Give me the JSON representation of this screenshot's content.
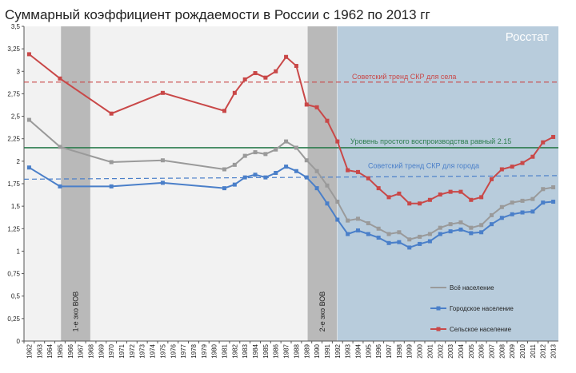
{
  "chart_data": {
    "type": "line",
    "title": "Суммарный коэффициент рождаемости в России с 1962 по 2013 гг",
    "watermark": "Росстат",
    "x_categories": [
      "1962",
      "1963",
      "1964",
      "1965",
      "1966",
      "1967",
      "1968",
      "1969",
      "1970",
      "1971",
      "1972",
      "1973",
      "1974",
      "1975",
      "1976",
      "1977",
      "1978",
      "1979",
      "1980",
      "1981",
      "1982",
      "1983",
      "1984",
      "1985",
      "1986",
      "1987",
      "1988",
      "1989",
      "1990",
      "1991",
      "1992",
      "1993",
      "1994",
      "1995",
      "1996",
      "1997",
      "1998",
      "1999",
      "2000",
      "2001",
      "2002",
      "2003",
      "2004",
      "2005",
      "2006",
      "2007",
      "2008",
      "2009",
      "2010",
      "2011",
      "2012",
      "2013"
    ],
    "y_ticks": [
      "0",
      "0,25",
      "0,5",
      "0,75",
      "1",
      "1,25",
      "1,5",
      "1,75",
      "2",
      "2,25",
      "2,5",
      "2,75",
      "3",
      "3,25",
      "3,5"
    ],
    "ylim": [
      0,
      3.5
    ],
    "grid": false,
    "legend_position": "bottom-right",
    "series": [
      {
        "name": "Всё население",
        "color": "#9a9a9a",
        "x": [
          1962,
          1965,
          1970,
          1975,
          1981,
          1982,
          1983,
          1984,
          1985,
          1986,
          1987,
          1988,
          1989,
          1990,
          1991,
          1992,
          1993,
          1994,
          1995,
          1996,
          1997,
          1998,
          1999,
          2000,
          2001,
          2002,
          2003,
          2004,
          2005,
          2006,
          2007,
          2008,
          2009,
          2010,
          2011,
          2012,
          2013
        ],
        "y": [
          2.46,
          2.16,
          1.99,
          2.01,
          1.91,
          1.96,
          2.06,
          2.1,
          2.08,
          2.13,
          2.22,
          2.15,
          2.01,
          1.89,
          1.73,
          1.55,
          1.34,
          1.36,
          1.31,
          1.25,
          1.19,
          1.21,
          1.13,
          1.16,
          1.19,
          1.26,
          1.3,
          1.32,
          1.26,
          1.29,
          1.4,
          1.49,
          1.54,
          1.56,
          1.58,
          1.69,
          1.71
        ]
      },
      {
        "name": "Городское население",
        "color": "#4a7fc9",
        "x": [
          1962,
          1965,
          1970,
          1975,
          1981,
          1982,
          1983,
          1984,
          1985,
          1986,
          1987,
          1988,
          1989,
          1990,
          1991,
          1992,
          1993,
          1994,
          1995,
          1996,
          1997,
          1998,
          1999,
          2000,
          2001,
          2002,
          2003,
          2004,
          2005,
          2006,
          2007,
          2008,
          2009,
          2010,
          2011,
          2012,
          2013
        ],
        "y": [
          1.93,
          1.72,
          1.72,
          1.76,
          1.7,
          1.74,
          1.82,
          1.85,
          1.82,
          1.87,
          1.94,
          1.89,
          1.82,
          1.7,
          1.53,
          1.35,
          1.19,
          1.23,
          1.19,
          1.15,
          1.09,
          1.1,
          1.04,
          1.08,
          1.11,
          1.19,
          1.22,
          1.24,
          1.2,
          1.21,
          1.3,
          1.37,
          1.41,
          1.43,
          1.44,
          1.54,
          1.55
        ]
      },
      {
        "name": "Сельское население",
        "color": "#c94848",
        "x": [
          1962,
          1965,
          1970,
          1975,
          1981,
          1982,
          1983,
          1984,
          1985,
          1986,
          1987,
          1988,
          1989,
          1990,
          1991,
          1992,
          1993,
          1994,
          1995,
          1996,
          1997,
          1998,
          1999,
          2000,
          2001,
          2002,
          2003,
          2004,
          2005,
          2006,
          2007,
          2008,
          2009,
          2010,
          2011,
          2012,
          2013
        ],
        "y": [
          3.19,
          2.92,
          2.53,
          2.76,
          2.56,
          2.76,
          2.91,
          2.98,
          2.93,
          3.0,
          3.16,
          3.06,
          2.63,
          2.6,
          2.45,
          2.22,
          1.9,
          1.88,
          1.81,
          1.7,
          1.6,
          1.64,
          1.53,
          1.53,
          1.57,
          1.63,
          1.66,
          1.66,
          1.57,
          1.6,
          1.8,
          1.91,
          1.94,
          1.98,
          2.05,
          2.21,
          2.27
        ]
      }
    ],
    "reference_lines": [
      {
        "label": "Советский тренд СКР для села",
        "y": 2.88,
        "color": "#c94848",
        "style": "dashed"
      },
      {
        "label": "Уровень простого воспроизводства равный 2.15",
        "y": 2.15,
        "color": "#2e7d4f",
        "style": "solid"
      },
      {
        "label": "Советский тренд СКР для города",
        "y": 1.8,
        "y_end": 1.84,
        "color": "#4a7fc9",
        "style": "dashed"
      }
    ],
    "shaded_bands": [
      {
        "label": "1-е эхо ВОВ",
        "from": 1965,
        "to": 1968,
        "color": "#b3b3b3"
      },
      {
        "label": "2-е эхо ВОВ",
        "from": 1989,
        "to": 1992,
        "color": "#b3b3b3"
      }
    ],
    "highlight_region": {
      "from": 1992,
      "to": 2013,
      "color": "#b8ccdc"
    }
  }
}
